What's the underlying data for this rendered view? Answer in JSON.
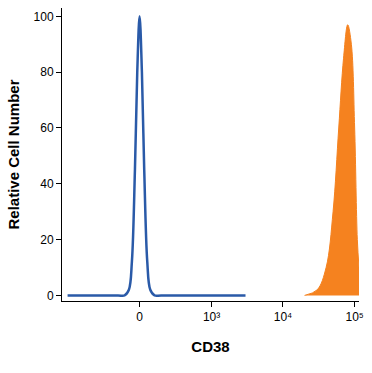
{
  "chart_data": {
    "type": "line",
    "x_label": "CD38",
    "y_label": "Relative Cell Number",
    "xlim": [
      -1200,
      115000
    ],
    "xticks": [
      0,
      {
        "value": 1000,
        "label": "10³"
      },
      {
        "value": 10000,
        "label": "10⁴"
      },
      {
        "value": 100000,
        "label": "10⁵"
      }
    ],
    "ylim": [
      -2,
      103
    ],
    "yticks": [
      0,
      20,
      40,
      60,
      80,
      100
    ],
    "grid": false,
    "series": [
      {
        "type": "line",
        "color": "#2a5aa8",
        "x": [
          -1000,
          -150,
          -100,
          -70,
          -50,
          -30,
          -15,
          0,
          15,
          30,
          50,
          70,
          100,
          150,
          3000
        ],
        "values": [
          0,
          0,
          0,
          2,
          12,
          45,
          80,
          100,
          80,
          45,
          12,
          2,
          0,
          0,
          0
        ]
      },
      {
        "type": "area",
        "color": "#f5821f",
        "x": [
          20000,
          30000,
          40000,
          50000,
          60000,
          70000,
          80000,
          90000,
          100000,
          109000,
          115000
        ],
        "values": [
          0,
          2,
          10,
          30,
          60,
          85,
          97,
          90,
          60,
          20,
          10
        ]
      }
    ]
  }
}
